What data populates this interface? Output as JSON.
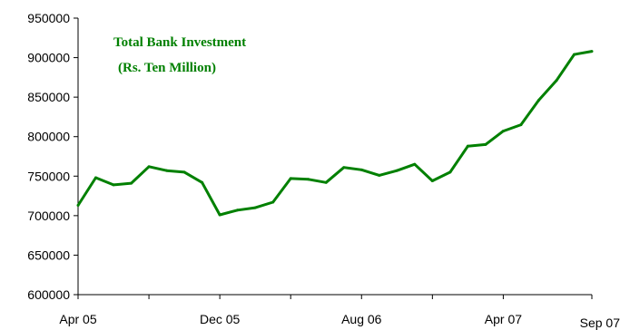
{
  "chart_data": {
    "type": "line",
    "title": "Total Bank Investment",
    "subtitle": "(Rs. Ten Million)",
    "xlabel": "",
    "ylabel": "",
    "ylim": [
      600000,
      950000
    ],
    "y_ticks": [
      "600000",
      "650000",
      "700000",
      "750000",
      "800000",
      "850000",
      "900000",
      "950000"
    ],
    "x_tick_labels": [
      {
        "label": "Apr 05",
        "index": 0
      },
      {
        "label": "Dec 05",
        "index": 8
      },
      {
        "label": "Aug 06",
        "index": 16
      },
      {
        "label": "Apr 07",
        "index": 24
      },
      {
        "label": "Sep 07",
        "index": 29
      }
    ],
    "grid": false,
    "series": [
      {
        "color": "#008000",
        "x": [
          "Apr 05",
          "May 05",
          "Jun 05",
          "Jul 05",
          "Aug 05",
          "Sep 05",
          "Oct 05",
          "Nov 05",
          "Dec 05",
          "Jan 06",
          "Feb 06",
          "Mar 06",
          "Apr 06",
          "May 06",
          "Jun 06",
          "Jul 06",
          "Aug 06",
          "Sep 06",
          "Oct 06",
          "Nov 06",
          "Dec 06",
          "Jan 07",
          "Feb 07",
          "Mar 07",
          "Apr 07",
          "May 07",
          "Jun 07",
          "Jul 07",
          "Aug 07",
          "Sep 07"
        ],
        "values": [
          713000,
          748000,
          739000,
          741000,
          762000,
          757000,
          755000,
          742000,
          701000,
          707000,
          710000,
          717000,
          747000,
          746000,
          742000,
          761000,
          758000,
          751000,
          757000,
          765000,
          744000,
          755000,
          788000,
          790000,
          807000,
          815000,
          846000,
          871000,
          904000,
          908000
        ]
      }
    ]
  }
}
